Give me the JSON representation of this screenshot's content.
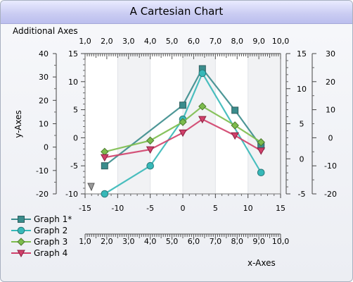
{
  "title": "A Cartesian Chart",
  "subtitle": "Additional Axes",
  "colors": {
    "graph1": "#3a8c8c",
    "graph2": "#36b8b8",
    "graph3": "#7cbc4c",
    "graph4": "#d0406a"
  },
  "chart_data": {
    "type": "line",
    "xlabel": "x-Axes",
    "ylabel": "y-Axes",
    "x_primary": {
      "range": [
        -15,
        15
      ],
      "ticks": [
        "-15",
        "-10",
        "-5",
        "0",
        "5",
        "10",
        "15"
      ]
    },
    "x_secondary": {
      "range": [
        1.0,
        10.0
      ],
      "ticks": [
        "1,0",
        "2,0",
        "3,0",
        "4,0",
        "5,0",
        "6,0",
        "7,0",
        "8,0",
        "9,0",
        "10,0"
      ]
    },
    "y_primary": {
      "range": [
        -10,
        15
      ],
      "ticks": [
        "-10",
        "-5",
        "0",
        "5",
        "10",
        "15"
      ]
    },
    "y_left_outer": {
      "range": [
        -20,
        40
      ],
      "ticks": [
        "-20",
        "-10",
        "0",
        "10",
        "20",
        "30",
        "40"
      ]
    },
    "y_right_inner": {
      "range": [
        -5,
        15
      ],
      "ticks": [
        "-5",
        "0",
        "5",
        "10",
        "15"
      ]
    },
    "y_right_outer": {
      "range": [
        -20,
        30
      ],
      "ticks": [
        "-20",
        "-10",
        "0",
        "10",
        "20",
        "30"
      ]
    },
    "series": [
      {
        "name": "Graph 1*",
        "marker": "square",
        "x": [
          -12,
          0,
          3,
          8,
          12
        ],
        "y": [
          -5,
          5.8,
          12.3,
          4.9,
          -1.5
        ]
      },
      {
        "name": "Graph 2",
        "marker": "circle",
        "x": [
          -12,
          -5,
          0,
          3,
          12
        ],
        "y": [
          -10,
          -5,
          3.3,
          11.5,
          -6.2
        ]
      },
      {
        "name": "Graph 3",
        "marker": "diamond",
        "x": [
          -12,
          -5,
          0,
          3,
          8,
          12
        ],
        "y": [
          -2.5,
          -0.5,
          2.8,
          5.6,
          2.2,
          -0.8
        ]
      },
      {
        "name": "Graph 4",
        "marker": "triangle-down",
        "x": [
          -12,
          -5,
          0,
          3,
          8,
          12
        ],
        "y": [
          -3.5,
          -2.1,
          0.9,
          3.3,
          0.4,
          -2.3
        ]
      }
    ]
  }
}
